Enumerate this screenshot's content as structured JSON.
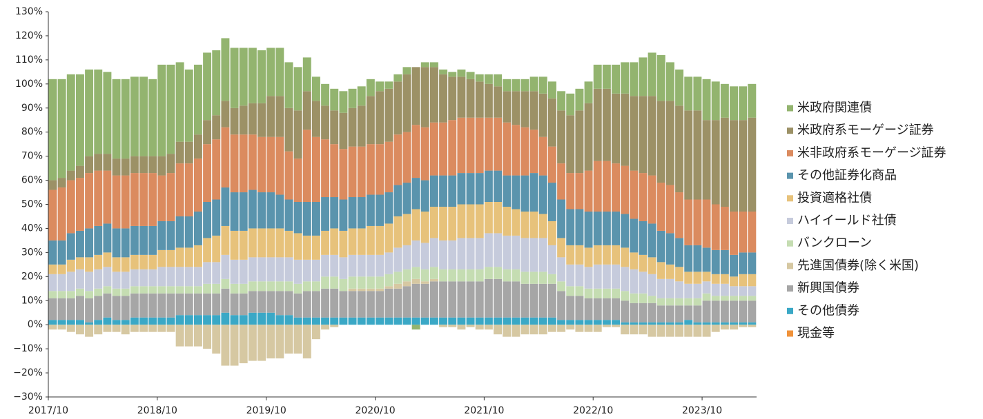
{
  "chart_data": {
    "type": "stacked-bar",
    "legend": "right",
    "grid": false,
    "ylim": [
      -30,
      130
    ],
    "yticks": [
      {
        "value": -30,
        "label": "−30%"
      },
      {
        "value": -20,
        "label": "−20%"
      },
      {
        "value": -10,
        "label": "−10%"
      },
      {
        "value": 0,
        "label": "0%"
      },
      {
        "value": 10,
        "label": "10%"
      },
      {
        "value": 20,
        "label": "20%"
      },
      {
        "value": 30,
        "label": "30%"
      },
      {
        "value": 40,
        "label": "40%"
      },
      {
        "value": 50,
        "label": "50%"
      },
      {
        "value": 60,
        "label": "60%"
      },
      {
        "value": 70,
        "label": "70%"
      },
      {
        "value": 80,
        "label": "80%"
      },
      {
        "value": 90,
        "label": "90%"
      },
      {
        "value": 100,
        "label": "100%"
      },
      {
        "value": 110,
        "label": "110%"
      },
      {
        "value": 120,
        "label": "120%"
      },
      {
        "value": 130,
        "label": "130%"
      }
    ],
    "categories": [
      "2017/10",
      null,
      null,
      null,
      null,
      null,
      null,
      null,
      null,
      null,
      null,
      null,
      "2018/10",
      null,
      null,
      null,
      null,
      null,
      null,
      null,
      null,
      null,
      null,
      null,
      "2019/10",
      null,
      null,
      null,
      null,
      null,
      null,
      null,
      null,
      null,
      null,
      null,
      "2020/10",
      null,
      null,
      null,
      null,
      null,
      null,
      null,
      null,
      null,
      null,
      null,
      "2021/10",
      null,
      null,
      null,
      null,
      null,
      null,
      null,
      null,
      null,
      null,
      null,
      "2022/10",
      null,
      null,
      null,
      null,
      null,
      null,
      null,
      null,
      null,
      null,
      null,
      "2023/10",
      null,
      null,
      null,
      null,
      null
    ],
    "series": [
      {
        "name": "現金等",
        "color": "#f0923a",
        "values": [
          0,
          0,
          0,
          0,
          0,
          0,
          0,
          0,
          0,
          0,
          0,
          0,
          0,
          0,
          0,
          0,
          0,
          0,
          0,
          0,
          0,
          0,
          0,
          0,
          0,
          0,
          0,
          0,
          0,
          0,
          0,
          0,
          0,
          0,
          0,
          0,
          0,
          0,
          0,
          0,
          0,
          0,
          0,
          0,
          0,
          0,
          0,
          0,
          0,
          0,
          0,
          0,
          0,
          0,
          0,
          0,
          0,
          0,
          0,
          0,
          0,
          0,
          0,
          0,
          0,
          0,
          0,
          0,
          0,
          0,
          0,
          0,
          0,
          0,
          0,
          0,
          0,
          0
        ]
      },
      {
        "name": "その他債券",
        "color": "#3aa8c6",
        "values": [
          2,
          2,
          2,
          2,
          1,
          2,
          3,
          2,
          2,
          3,
          3,
          3,
          3,
          3,
          4,
          4,
          4,
          4,
          4,
          5,
          4,
          4,
          5,
          5,
          5,
          4,
          4,
          3,
          3,
          3,
          3,
          3,
          3,
          3,
          3,
          3,
          3,
          3,
          3,
          3,
          3,
          3,
          3,
          3,
          3,
          3,
          3,
          3,
          3,
          3,
          3,
          3,
          3,
          3,
          3,
          3,
          2,
          2,
          2,
          2,
          2,
          2,
          2,
          1,
          1,
          1,
          1,
          1,
          1,
          1,
          2,
          1,
          1,
          1,
          1,
          1,
          1,
          1
        ]
      },
      {
        "name": "新興国債券",
        "color": "#a6a6a6",
        "values": [
          9,
          9,
          9,
          10,
          10,
          10,
          10,
          10,
          10,
          10,
          10,
          10,
          10,
          10,
          9,
          9,
          9,
          9,
          9,
          10,
          9,
          9,
          9,
          9,
          9,
          10,
          10,
          10,
          11,
          11,
          12,
          12,
          11,
          11,
          11,
          11,
          11,
          12,
          12,
          13,
          14,
          14,
          15,
          15,
          15,
          15,
          15,
          15,
          16,
          16,
          15,
          15,
          14,
          14,
          14,
          14,
          12,
          10,
          10,
          9,
          9,
          9,
          9,
          9,
          8,
          8,
          8,
          7,
          7,
          7,
          6,
          7,
          9,
          9,
          9,
          9,
          9,
          9
        ]
      },
      {
        "name": "先進国債券(除く米国)",
        "color": "#d6c8a2",
        "values": [
          -2,
          -2,
          -3,
          -4,
          -5,
          -4,
          -3,
          -3,
          -4,
          -3,
          -3,
          -3,
          -3,
          -3,
          -9,
          -9,
          -9,
          -10,
          -12,
          -17,
          -17,
          -16,
          -15,
          -15,
          -14,
          -14,
          -12,
          -12,
          -14,
          -6,
          -2,
          -1,
          0,
          1,
          1,
          1,
          1,
          1,
          2,
          2,
          2,
          1,
          1,
          -1,
          -1,
          -2,
          -1,
          -2,
          -2,
          -4,
          -5,
          -5,
          -4,
          -4,
          -4,
          -3,
          -3,
          -2,
          -3,
          -3,
          -3,
          -1,
          -1,
          -4,
          -4,
          -4,
          -5,
          -5,
          -5,
          -5,
          -5,
          -5,
          -5,
          -3,
          -2,
          -2,
          -1,
          -1
        ]
      },
      {
        "name": "バンクローン",
        "color": "#c5ddb2",
        "values": [
          3,
          3,
          3,
          3,
          3,
          3,
          3,
          3,
          3,
          3,
          3,
          3,
          3,
          3,
          3,
          3,
          3,
          4,
          4,
          4,
          4,
          4,
          4,
          4,
          4,
          4,
          4,
          4,
          4,
          4,
          5,
          5,
          5,
          5,
          5,
          5,
          5,
          5,
          5,
          5,
          5,
          5,
          5,
          5,
          5,
          5,
          5,
          5,
          5,
          5,
          5,
          5,
          5,
          5,
          5,
          4,
          4,
          4,
          4,
          4,
          4,
          4,
          4,
          4,
          4,
          4,
          3,
          3,
          3,
          3,
          3,
          3,
          3,
          2,
          2,
          2,
          2,
          2
        ]
      },
      {
        "name": "ハイイールド社債",
        "color": "#c6cbdc",
        "values": [
          7,
          7,
          8,
          8,
          8,
          8,
          8,
          7,
          7,
          7,
          7,
          7,
          8,
          8,
          8,
          8,
          8,
          9,
          9,
          10,
          10,
          10,
          10,
          10,
          10,
          10,
          10,
          10,
          9,
          9,
          9,
          9,
          9,
          9,
          9,
          9,
          9,
          9,
          10,
          10,
          11,
          11,
          12,
          12,
          12,
          13,
          13,
          13,
          14,
          14,
          14,
          14,
          14,
          14,
          14,
          12,
          10,
          9,
          9,
          9,
          10,
          10,
          10,
          10,
          10,
          9,
          9,
          8,
          8,
          7,
          6,
          6,
          5,
          5,
          5,
          4,
          4,
          4
        ]
      },
      {
        "name": "投資適格社債",
        "color": "#e7c27b",
        "values": [
          4,
          4,
          5,
          5,
          6,
          6,
          6,
          6,
          6,
          6,
          6,
          6,
          7,
          7,
          8,
          8,
          9,
          10,
          11,
          12,
          12,
          12,
          12,
          12,
          12,
          12,
          11,
          11,
          10,
          10,
          10,
          11,
          11,
          11,
          11,
          12,
          12,
          12,
          13,
          13,
          13,
          13,
          13,
          14,
          14,
          14,
          14,
          14,
          13,
          13,
          12,
          11,
          11,
          11,
          10,
          10,
          8,
          8,
          8,
          8,
          8,
          8,
          8,
          8,
          7,
          7,
          7,
          7,
          6,
          6,
          5,
          5,
          4,
          4,
          4,
          4,
          5,
          5
        ]
      },
      {
        "name": "その他証券化商品",
        "color": "#5a94ad",
        "values": [
          10,
          10,
          11,
          11,
          12,
          12,
          12,
          12,
          12,
          12,
          12,
          12,
          12,
          12,
          13,
          13,
          14,
          15,
          15,
          16,
          16,
          16,
          16,
          15,
          15,
          14,
          13,
          13,
          14,
          14,
          14,
          13,
          13,
          13,
          13,
          13,
          13,
          13,
          13,
          13,
          13,
          13,
          13,
          13,
          13,
          13,
          13,
          13,
          13,
          13,
          13,
          14,
          15,
          16,
          16,
          16,
          16,
          15,
          15,
          15,
          14,
          14,
          14,
          14,
          14,
          14,
          14,
          13,
          13,
          12,
          11,
          11,
          10,
          10,
          10,
          9,
          9,
          9
        ]
      },
      {
        "name": "米非政府系モーゲージ証券",
        "color": "#db8b5f",
        "values": [
          21,
          22,
          22,
          22,
          23,
          23,
          22,
          22,
          22,
          22,
          22,
          22,
          19,
          20,
          22,
          22,
          22,
          24,
          25,
          25,
          24,
          24,
          23,
          23,
          23,
          24,
          20,
          18,
          30,
          27,
          24,
          22,
          21,
          21,
          21,
          21,
          21,
          21,
          21,
          21,
          22,
          22,
          22,
          22,
          23,
          23,
          23,
          23,
          22,
          22,
          22,
          21,
          20,
          18,
          16,
          15,
          15,
          15,
          15,
          17,
          21,
          21,
          20,
          20,
          20,
          20,
          20,
          20,
          20,
          19,
          19,
          19,
          20,
          19,
          18,
          18,
          17,
          17
        ]
      },
      {
        "name": "米政府系モーゲージ証券",
        "color": "#9c9166",
        "values": [
          4,
          4,
          4,
          5,
          7,
          7,
          7,
          7,
          7,
          7,
          7,
          7,
          8,
          8,
          9,
          9,
          10,
          10,
          10,
          11,
          11,
          12,
          13,
          14,
          17,
          17,
          18,
          20,
          16,
          15,
          14,
          14,
          15,
          16,
          17,
          20,
          22,
          22,
          22,
          24,
          24,
          25,
          23,
          20,
          18,
          17,
          16,
          15,
          14,
          13,
          13,
          14,
          15,
          16,
          18,
          20,
          22,
          24,
          26,
          28,
          30,
          30,
          29,
          30,
          31,
          32,
          33,
          34,
          35,
          36,
          37,
          37,
          33,
          35,
          37,
          38,
          38,
          39
        ]
      },
      {
        "name": "米政府関連債",
        "color": "#93b46f",
        "values": [
          42,
          41,
          40,
          38,
          36,
          35,
          34,
          33,
          33,
          33,
          33,
          32,
          38,
          37,
          33,
          30,
          29,
          28,
          27,
          26,
          25,
          24,
          23,
          22,
          20,
          20,
          19,
          18,
          14,
          10,
          9,
          9,
          9,
          8,
          8,
          7,
          4,
          3,
          3,
          3,
          -2,
          2,
          2,
          2,
          2,
          3,
          3,
          3,
          4,
          5,
          5,
          5,
          5,
          6,
          7,
          7,
          8,
          9,
          9,
          9,
          10,
          10,
          12,
          13,
          14,
          16,
          18,
          19,
          16,
          15,
          14,
          14,
          17,
          16,
          14,
          14,
          14,
          14
        ]
      }
    ]
  }
}
